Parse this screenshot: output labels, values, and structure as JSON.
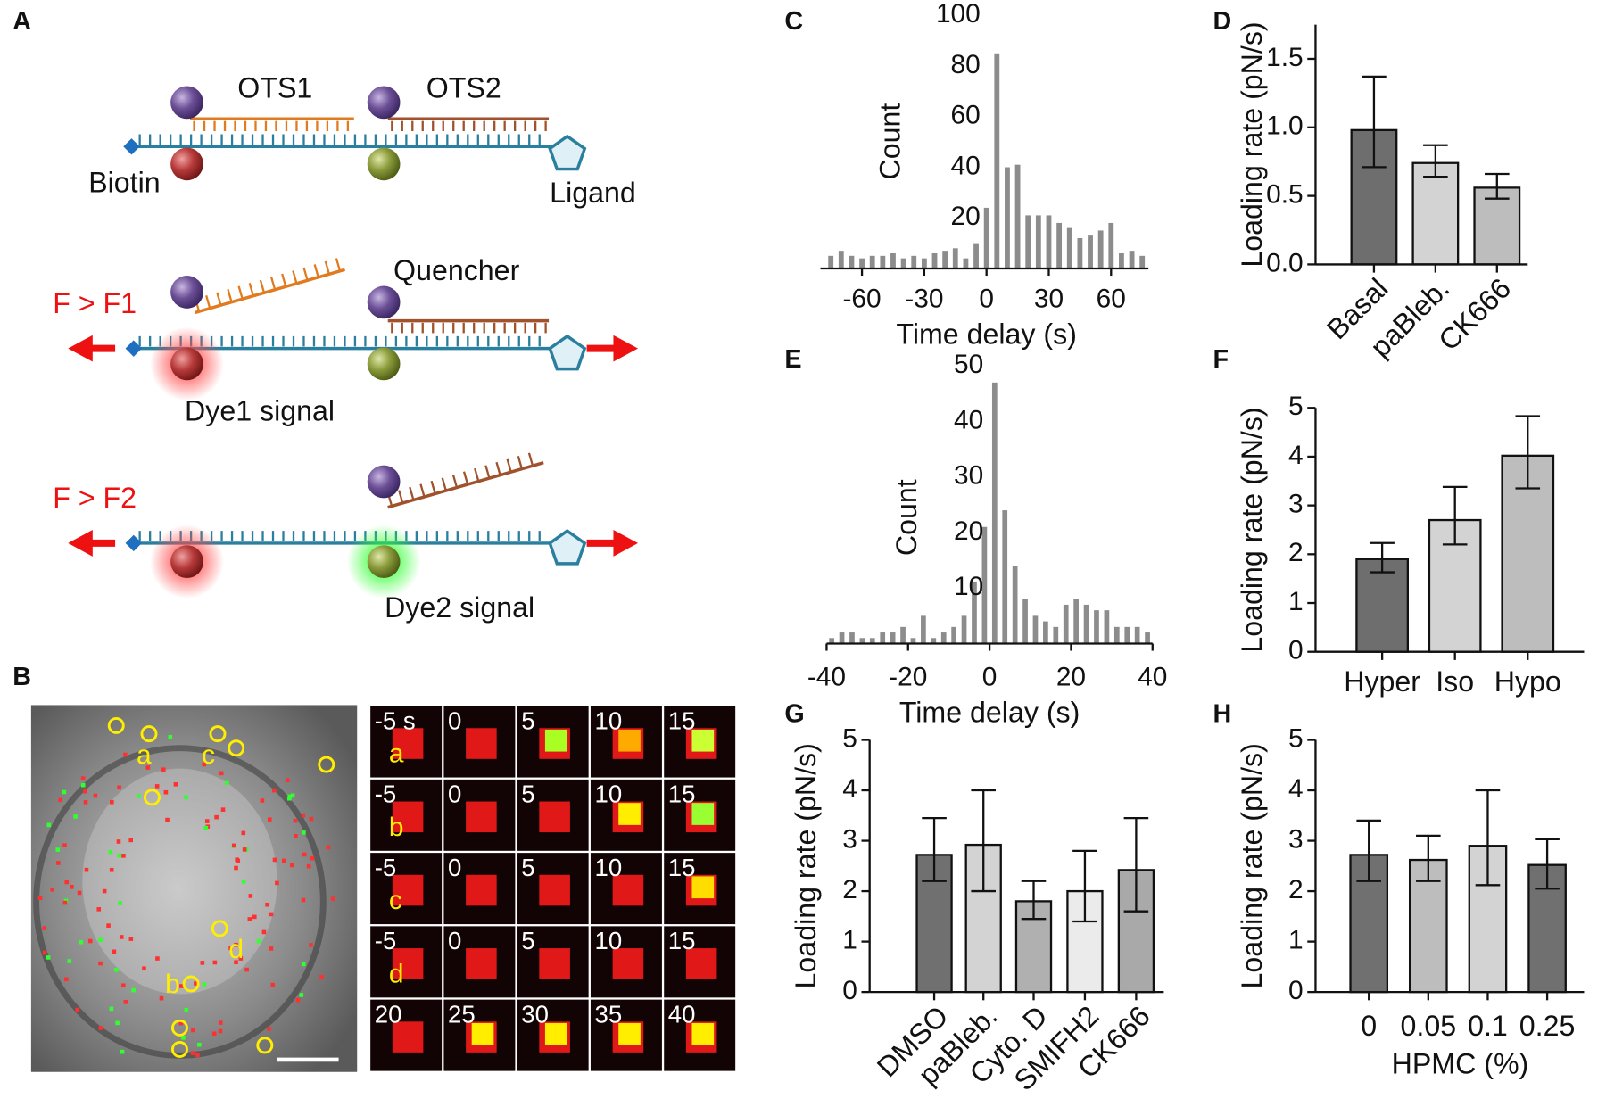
{
  "panel_labels": [
    "A",
    "B",
    "C",
    "D",
    "E",
    "F",
    "G",
    "H"
  ],
  "diagram": {
    "ots1": "OTS1",
    "ots2": "OTS2",
    "biotin": "Biotin",
    "ligand": "Ligand",
    "quencher": "Quencher",
    "force1": "F > F1",
    "dye1": "Dye1 signal",
    "force2": "F > F2",
    "dye2": "Dye2 signal"
  },
  "micrograph": {
    "spot_labels": [
      "a",
      "c",
      "d",
      "b"
    ],
    "tiles": [
      [
        "-5 s",
        "0",
        "5",
        "10",
        "15"
      ],
      [
        "-5",
        "0",
        "5",
        "10",
        "15"
      ],
      [
        "-5",
        "0",
        "5",
        "10",
        "15"
      ],
      [
        "-5",
        "0",
        "5",
        "10",
        "15"
      ],
      [
        "20",
        "25",
        "30",
        "35",
        "40"
      ]
    ],
    "tile_letters": [
      "a",
      "b",
      "c",
      "d"
    ]
  },
  "chart_data": [
    {
      "type": "histogram",
      "xlabel": "Time delay (s)",
      "ylabel": "Count",
      "bins": [
        -77.5,
        -72.5,
        -67.5,
        -62.5,
        -57.5,
        -52.5,
        -47.5,
        -42.5,
        -37.5,
        -32.5,
        -27.5,
        -22.5,
        -17.5,
        -12.5,
        -7.5,
        -2.5,
        2.5,
        7.5,
        12.5,
        17.5,
        22.5,
        27.5,
        32.5,
        37.5,
        42.5,
        47.5,
        52.5,
        57.5,
        62.5,
        67.5,
        72.5,
        77.5
      ],
      "values": [
        5,
        7,
        5,
        4,
        5,
        5,
        6,
        4,
        5,
        4,
        6,
        7,
        8,
        4,
        10,
        24,
        85,
        40,
        41,
        21,
        21,
        21,
        18,
        16,
        12,
        13,
        15,
        18,
        6,
        7,
        5
      ],
      "color": "#8c8c8c",
      "xlim": [
        -80,
        78
      ],
      "xticks": [
        -60,
        -30,
        0,
        30,
        60
      ],
      "ylim": [
        0,
        100
      ],
      "yticks": [
        20,
        40,
        60,
        80,
        100
      ]
    },
    {
      "type": "bar",
      "ylabel": "Loading rate (pN/s)",
      "categories": [
        "Basal",
        "paBleb.",
        "CK666"
      ],
      "values": [
        0.98,
        0.74,
        0.56
      ],
      "error_low": [
        0.71,
        0.64,
        0.48
      ],
      "error_high": [
        1.37,
        0.87,
        0.66
      ],
      "colors": [
        "#6e6e6e",
        "#d3d3d3",
        "#bdbdbd"
      ],
      "ylim": [
        0,
        1.75
      ],
      "yticks": [
        {
          "value": 0,
          "label": "0.0"
        },
        0.5,
        {
          "value": 1,
          "label": "1.0"
        },
        1.5
      ]
    },
    {
      "type": "histogram",
      "xlabel": "Time delay (s)",
      "ylabel": "Count",
      "bins": [
        -40,
        -37.5,
        -35,
        -32.5,
        -30,
        -27.5,
        -25,
        -22.5,
        -20,
        -17.5,
        -15,
        -12.5,
        -10,
        -7.5,
        -5,
        -2.5,
        0,
        2.5,
        5,
        7.5,
        10,
        12.5,
        15,
        17.5,
        20,
        22.5,
        25,
        27.5,
        30,
        32.5,
        35,
        37.5,
        40
      ],
      "values": [
        1,
        2,
        2,
        1,
        1,
        2,
        2,
        3,
        1,
        5,
        1,
        2,
        3,
        5,
        11,
        21,
        47,
        24,
        14,
        8,
        5,
        4,
        3,
        7,
        8,
        7,
        6,
        6,
        3,
        3,
        3,
        2
      ],
      "color": "#8c8c8c",
      "xlim": [
        -40,
        40
      ],
      "xticks": [
        -40,
        -20,
        0,
        20,
        40
      ],
      "ylim": [
        0,
        50
      ],
      "yticks": [
        10,
        20,
        30,
        40,
        50
      ]
    },
    {
      "type": "bar",
      "ylabel": "Loading rate (pN/s)",
      "categories": [
        "Hyper",
        "Iso",
        "Hypo"
      ],
      "values": [
        1.9,
        2.7,
        4.02
      ],
      "error_low": [
        1.63,
        2.2,
        3.35
      ],
      "error_high": [
        2.23,
        3.38,
        4.83
      ],
      "colors": [
        "#6e6e6e",
        "#d3d3d3",
        "#bdbdbd"
      ],
      "ylim": [
        0,
        5
      ],
      "yticks": [
        0,
        1,
        2,
        3,
        4,
        5
      ]
    },
    {
      "type": "bar",
      "ylabel": "Loading rate (pN/s)",
      "categories": [
        "DMSO",
        "paBleb.",
        "Cyto. D",
        "SMIFH2",
        "CK666"
      ],
      "values": [
        2.72,
        2.92,
        1.8,
        2.0,
        2.42
      ],
      "error_low": [
        2.2,
        2.0,
        1.45,
        1.4,
        1.6
      ],
      "error_high": [
        3.45,
        4.0,
        2.2,
        2.8,
        3.45
      ],
      "colors": [
        "#707070",
        "#d3d3d3",
        "#b0b0b0",
        "#ebebeb",
        "#a9a9a9"
      ],
      "ylim": [
        0,
        5
      ],
      "yticks": [
        0,
        1,
        2,
        3,
        4,
        5
      ]
    },
    {
      "type": "bar",
      "ylabel": "Loading rate (pN/s)",
      "xlabel": "HPMC (%)",
      "categories": [
        "0",
        "0.05",
        "0.1",
        "0.25"
      ],
      "values": [
        2.72,
        2.62,
        2.9,
        2.52
      ],
      "error_low": [
        2.2,
        2.2,
        2.12,
        2.05
      ],
      "error_high": [
        3.4,
        3.1,
        4.0,
        3.03
      ],
      "colors": [
        "#707070",
        "#bdbdbd",
        "#d3d3d3",
        "#707070"
      ],
      "ylim": [
        0,
        5
      ],
      "yticks": [
        0,
        1,
        2,
        3,
        4,
        5
      ]
    }
  ]
}
